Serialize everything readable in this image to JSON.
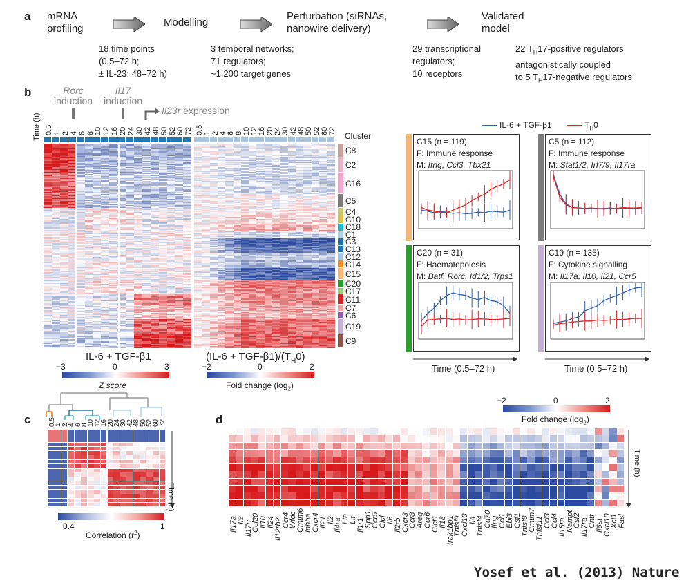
{
  "panel_a": {
    "label": "a",
    "steps": [
      {
        "title": "mRNA\nprofiling",
        "detail": "18 time points\n(0.5–72 h;\n± IL-23: 48–72 h)"
      },
      {
        "title": "Modelling",
        "detail": "3 temporal networks;\n71 regulators;\n~1,200 target genes"
      },
      {
        "title": "Perturbation (siRNAs,\nnanowire delivery)",
        "detail": "29 transcriptional\nregulators;\n10 receptors"
      },
      {
        "title": "Validated\nmodel",
        "detail_html": true
      }
    ],
    "validated_detail_lines": [
      "22 T",
      "H",
      "17-positive regulators",
      "antagonistically coupled",
      "to 5 T",
      "H",
      "17-negative regulators"
    ]
  },
  "panel_b": {
    "label": "b",
    "induction_labels": {
      "rorc": "Rorc",
      "il17": "Il17",
      "induction": "induction",
      "il23r": "Il23r",
      "expression": " expression"
    },
    "time_axis_label": "Time (h)",
    "time_points_left": [
      "0.5",
      "1",
      "2",
      "4",
      "6",
      "8",
      "10",
      "12",
      "16",
      "20",
      "24",
      "30",
      "42",
      "48",
      "50",
      "52",
      "60",
      "72"
    ],
    "time_points_right": [
      "0.5",
      "1",
      "2",
      "4",
      "6",
      "8",
      "10",
      "12",
      "16",
      "20",
      "24",
      "30",
      "42",
      "48",
      "50",
      "52",
      "60",
      "72"
    ],
    "cluster_header": "Cluster",
    "clusters": [
      {
        "name": "C8",
        "color": "#c9a19a"
      },
      {
        "name": "C2",
        "color": "#e8b4c8"
      },
      {
        "name": "C16",
        "color": "#f0a8d0"
      },
      {
        "name": "C5",
        "color": "#7c7c7c"
      },
      {
        "name": "C4",
        "color": "#c5c96a"
      },
      {
        "name": "C10",
        "color": "#d9c24a"
      },
      {
        "name": "C18",
        "color": "#20b7c7"
      },
      {
        "name": "C1",
        "color": "#b0d2e6"
      },
      {
        "name": "C3",
        "color": "#1f6fa8"
      },
      {
        "name": "C13",
        "color": "#1f77b4"
      },
      {
        "name": "C12",
        "color": "#a7c6e2"
      },
      {
        "name": "C14",
        "color": "#f08a24"
      },
      {
        "name": "C15",
        "color": "#f5b878"
      },
      {
        "name": "C20",
        "color": "#2ca02c"
      },
      {
        "name": "C17",
        "color": "#98d07a"
      },
      {
        "name": "C11",
        "color": "#d62728"
      },
      {
        "name": "C7",
        "color": "#f0a0a0"
      },
      {
        "name": "C6",
        "color": "#8c5fa8"
      },
      {
        "name": "C19",
        "color": "#c5b0d5"
      },
      {
        "name": "C9",
        "color": "#8c564b"
      }
    ],
    "heatmap_left_title": "IL-6 + TGF-β1",
    "heatmap_right_title": "(IL-6 + TGF-β1)/(T",
    "heatmap_right_title_sub": "H",
    "heatmap_right_title_end": "0)",
    "zscore_scale": {
      "min": "−3",
      "mid": "0",
      "max": "3",
      "label": "Z score"
    },
    "fold_scale": {
      "min": "−2",
      "mid": "0",
      "max": "2",
      "label": "Fold change (log",
      "label_sub": "2",
      "label_end": ")"
    },
    "legend": {
      "series1": "IL-6 + TGF-β1",
      "series2": "T",
      "series2_sub": "H",
      "series2_end": "0",
      "color1": "#2c5fa8",
      "color2": "#d62728"
    },
    "cluster_panels": [
      {
        "title": "C15 (n = 119)",
        "func": "F: Immune response",
        "m_prefix": "M: ",
        "genes": "Ifng, Ccl3, Tbx21",
        "bar_color": "#f5b878"
      },
      {
        "title": "C5 (n = 112)",
        "func": "F: Immune response",
        "m_prefix": "M: ",
        "genes": "Stat1/2, Irf7/9, Il17ra",
        "bar_color": "#7c7c7c"
      },
      {
        "title": "C20 (n = 31)",
        "func": "F: Haematopoiesis",
        "m_prefix": "M: ",
        "genes": "Batf, Rorc, Id1/2, Trps1",
        "bar_color": "#2ca02c"
      },
      {
        "title": "C19 (n = 135)",
        "func": "F: Cytokine signalling",
        "m_prefix": "M: ",
        "genes": "Il17a, Il10, Il21, Ccr5",
        "bar_color": "#c5b0d5"
      }
    ],
    "time_range_label": "Time (0.5–72 h)"
  },
  "panel_c": {
    "label": "c",
    "time_points": [
      "0.5",
      "1",
      "2",
      "4",
      "6",
      "8",
      "10",
      "12",
      "16",
      "20",
      "24",
      "30",
      "42",
      "48",
      "50",
      "52",
      "60",
      "72"
    ],
    "time_axis_label": "Time (h)",
    "scale": {
      "min": "0.4",
      "max": "1",
      "label": "Correlation (r",
      "label_sub": "2",
      "label_end": ")"
    }
  },
  "panel_d": {
    "label": "d",
    "scale": {
      "min": "−2",
      "mid": "0",
      "max": "2",
      "label": "Fold change (log",
      "label_sub": "2",
      "label_end": ")"
    },
    "time_axis_label": "Time (h)",
    "genes": [
      "Il17a",
      "Il9",
      "Il17rr",
      "Ccl20",
      "Il10",
      "Il24",
      "Il12rb2",
      "Ccr4",
      "Wfdc",
      "Cmtm6",
      "Inhba",
      "Cxcr4",
      "Il21",
      "Il2",
      "Il4ra",
      "Lta",
      "Lif",
      "Il1r1",
      "Spp1",
      "Ccr5",
      "Clcf",
      "Il6",
      "Il2rb",
      "Cxcr3",
      "Ccr8",
      "Areg",
      "Ccr6",
      "Clcf1",
      "Il18",
      "Irak1bp1",
      "Tnfsf9",
      "Cxcl13",
      "Il4",
      "Tnfsf4",
      "Cd70",
      "Ifng",
      "Ccl1",
      "Ebi3",
      "Csf1",
      "Tnfsf8",
      "Cmtm7",
      "Tnfsf11",
      "Ccl3",
      "Ccl4",
      "Il15ra",
      "Nampt",
      "Csf2",
      "Il17ra",
      "Cntf",
      "Il6st",
      "Cxcl10",
      "Xcl1",
      "Fasl"
    ]
  },
  "credit": "Yosef et al. (2013) Nature"
}
